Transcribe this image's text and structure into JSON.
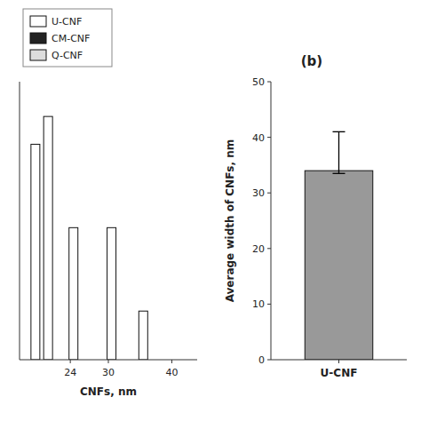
{
  "chart_data": [
    {
      "type": "bar",
      "xlabel": "CNFs, nm",
      "x": [
        18.5,
        20.5,
        24.5,
        30.5,
        35.5
      ],
      "series": [
        {
          "name": "U-CNF",
          "color": "white",
          "values": [
            15.5,
            17.5,
            9.5,
            9.5,
            3.5
          ]
        },
        {
          "name": "CM-CNF",
          "color": "#222222",
          "values": [
            null,
            null,
            null,
            null,
            null
          ]
        },
        {
          "name": "Q-CNF",
          "color": "#dddddd",
          "values": [
            null,
            null,
            null,
            null,
            null
          ]
        }
      ],
      "xlim": [
        16,
        44
      ],
      "xticks": [
        24,
        30,
        40
      ],
      "ylim": [
        0,
        20
      ],
      "yticks": [],
      "tick_labels": "x",
      "legend": "upper left",
      "grid": false
    },
    {
      "type": "bar",
      "ylabel": "Average width of CNFs, nm",
      "categories": [
        "U-CNF"
      ],
      "values": [
        34
      ],
      "error_upper": [
        7
      ],
      "error_lower": [
        0.5
      ],
      "color": "#999999",
      "ylim": [
        0,
        50
      ],
      "yticks": [
        0,
        10,
        20,
        30,
        40,
        50
      ],
      "annotation": "(b)",
      "grid": false
    }
  ]
}
